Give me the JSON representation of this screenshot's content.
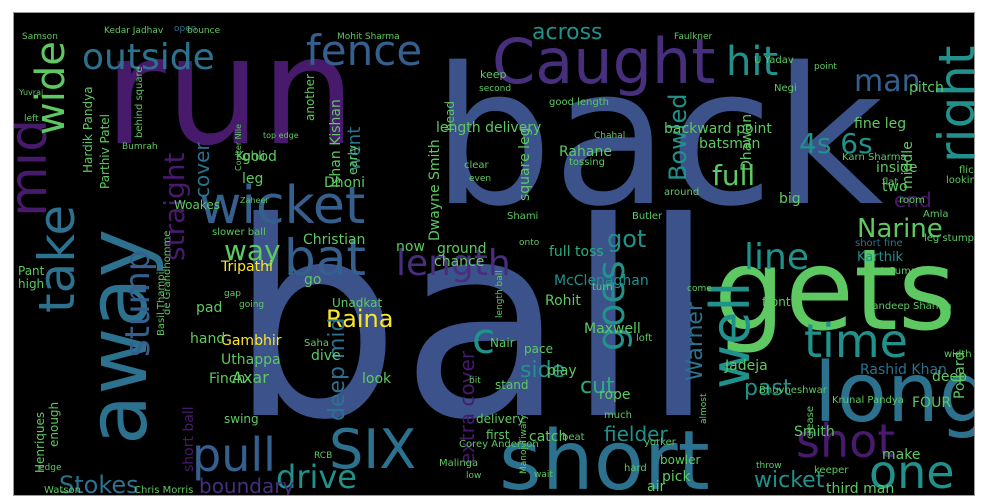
{
  "palette": {
    "purple": "#481a6c",
    "violet": "#472f7d",
    "indigo": "#414487",
    "blue": "#3b528b",
    "slate": "#355f8d",
    "steel": "#2c728e",
    "teal": "#21918c",
    "sea": "#28ae80",
    "green": "#5ec962",
    "lime": "#addc30",
    "yellow": "#fde725",
    "background": "#000000",
    "border": "#9a9a9a"
  },
  "words": [
    {
      "text": "ball"
    },
    {
      "text": "back"
    },
    {
      "text": "run"
    },
    {
      "text": "gets"
    },
    {
      "text": "away"
    },
    {
      "text": "short"
    },
    {
      "text": "long"
    },
    {
      "text": "Caught"
    },
    {
      "text": "wicket"
    },
    {
      "text": "mid"
    },
    {
      "text": "fence"
    },
    {
      "text": "outside"
    },
    {
      "text": "bat"
    },
    {
      "text": "right"
    },
    {
      "text": "take"
    },
    {
      "text": "well"
    },
    {
      "text": "SIX"
    },
    {
      "text": "pull"
    },
    {
      "text": "time"
    },
    {
      "text": "shot"
    },
    {
      "text": "one"
    },
    {
      "text": "wide"
    },
    {
      "text": "stump"
    },
    {
      "text": "hit"
    },
    {
      "text": "line"
    },
    {
      "text": "drive"
    },
    {
      "text": "full"
    },
    {
      "text": "goes"
    },
    {
      "text": "length"
    },
    {
      "text": "man"
    },
    {
      "text": "Narine"
    },
    {
      "text": "4s 6s"
    },
    {
      "text": "straight"
    },
    {
      "text": "way"
    },
    {
      "text": "Raina"
    },
    {
      "text": "Stokes"
    },
    {
      "text": "boundary"
    },
    {
      "text": "cover"
    },
    {
      "text": "across"
    },
    {
      "text": "Bowled"
    },
    {
      "text": "got"
    },
    {
      "text": "c"
    },
    {
      "text": "Warner"
    },
    {
      "text": "deep mid"
    },
    {
      "text": "extra cover"
    },
    {
      "text": "side"
    },
    {
      "text": "cut"
    },
    {
      "text": "past"
    },
    {
      "text": "fielder"
    },
    {
      "text": "wicket"
    },
    {
      "text": "went"
    },
    {
      "text": "end"
    },
    {
      "text": "Dhoni"
    },
    {
      "text": "Dwayne Smith"
    },
    {
      "text": "Christian"
    },
    {
      "text": "Tripathi"
    },
    {
      "text": "Gambhir"
    },
    {
      "text": "Uthappa"
    },
    {
      "text": "Axar"
    },
    {
      "text": "Rahane"
    },
    {
      "text": "Jadeja"
    },
    {
      "text": "Maxwell"
    },
    {
      "text": "Rohit"
    },
    {
      "text": "Rashid Khan"
    },
    {
      "text": "Kohli"
    },
    {
      "text": "Dhawan"
    },
    {
      "text": "Smith"
    },
    {
      "text": "Karthik"
    },
    {
      "text": "McClenaghan"
    },
    {
      "text": "full toss"
    },
    {
      "text": "ground"
    },
    {
      "text": "square leg"
    },
    {
      "text": "length delivery"
    },
    {
      "text": "backward point"
    },
    {
      "text": "batsman"
    },
    {
      "text": "fine leg"
    },
    {
      "text": "pitch"
    },
    {
      "text": "keep"
    },
    {
      "text": "second"
    },
    {
      "text": "Faulkner"
    },
    {
      "text": "Mohit Sharma"
    },
    {
      "text": "Kedar Jadhav"
    },
    {
      "text": "open"
    },
    {
      "text": "Samson"
    },
    {
      "text": "Yuvraj"
    },
    {
      "text": "Hardik Pandya"
    },
    {
      "text": "Parthiv Patel"
    },
    {
      "text": "Woakes"
    },
    {
      "text": "Pant"
    },
    {
      "text": "high"
    },
    {
      "text": "pad"
    },
    {
      "text": "hand"
    },
    {
      "text": "Finch"
    },
    {
      "text": "good"
    },
    {
      "text": "leg"
    },
    {
      "text": "another"
    },
    {
      "text": "Ishan Kishan"
    },
    {
      "text": "now"
    },
    {
      "text": "chance"
    },
    {
      "text": "go"
    },
    {
      "text": "Unadkat"
    },
    {
      "text": "Nair"
    },
    {
      "text": "pace"
    },
    {
      "text": "dive"
    },
    {
      "text": "look"
    },
    {
      "text": "stand"
    },
    {
      "text": "first"
    },
    {
      "text": "delivery"
    },
    {
      "text": "catch"
    },
    {
      "text": "play"
    },
    {
      "text": "rope"
    },
    {
      "text": "bowler"
    },
    {
      "text": "pick"
    },
    {
      "text": "air"
    },
    {
      "text": "third man"
    },
    {
      "text": "make"
    },
    {
      "text": "Krunal Pandya"
    },
    {
      "text": "FOUR"
    },
    {
      "text": "deep"
    },
    {
      "text": "Pollard"
    },
    {
      "text": "front"
    },
    {
      "text": "middle"
    },
    {
      "text": "inside"
    },
    {
      "text": "two"
    },
    {
      "text": "big"
    },
    {
      "text": "Karn Sharma"
    },
    {
      "text": "Henriques"
    },
    {
      "text": "enough"
    },
    {
      "text": "swing"
    },
    {
      "text": "short ball"
    },
    {
      "text": "Chris Morris"
    },
    {
      "text": "Watson"
    },
    {
      "text": "early"
    },
    {
      "text": "head"
    },
    {
      "text": "clear"
    },
    {
      "text": "Zaheer"
    },
    {
      "text": "slower ball"
    },
    {
      "text": "de Grandhomme"
    },
    {
      "text": "Corey Anderson"
    },
    {
      "text": "Bhuvneshwar"
    },
    {
      "text": "crease"
    },
    {
      "text": "Sandeep Sharma"
    },
    {
      "text": "Pat Cummins"
    },
    {
      "text": "short fine"
    },
    {
      "text": "U Yadav"
    },
    {
      "text": "Negi"
    },
    {
      "text": "Coulter Nile"
    },
    {
      "text": "Butler"
    },
    {
      "text": "Shami"
    },
    {
      "text": "around"
    },
    {
      "text": "turn"
    },
    {
      "text": "Saha"
    },
    {
      "text": "Basil Thampi"
    },
    {
      "text": "Malinga"
    },
    {
      "text": "hard"
    },
    {
      "text": "keeper"
    },
    {
      "text": "bounce"
    },
    {
      "text": "point"
    },
    {
      "text": "left"
    },
    {
      "text": "top edge"
    },
    {
      "text": "behind square"
    },
    {
      "text": "good length"
    },
    {
      "text": "tossing"
    },
    {
      "text": "flick"
    },
    {
      "text": "looking"
    },
    {
      "text": "flat"
    },
    {
      "text": "room"
    },
    {
      "text": "Amla"
    },
    {
      "text": "leg stump"
    },
    {
      "text": "width"
    },
    {
      "text": "loft"
    },
    {
      "text": "beat"
    },
    {
      "text": "yorker"
    },
    {
      "text": "much"
    },
    {
      "text": "edge"
    },
    {
      "text": "low"
    },
    {
      "text": "RCB"
    },
    {
      "text": "bit"
    },
    {
      "text": "even"
    },
    {
      "text": "Bumrah"
    },
    {
      "text": "gap"
    },
    {
      "text": "going"
    },
    {
      "text": "length ball"
    },
    {
      "text": "onto"
    },
    {
      "text": "Manoj Tiwary"
    },
    {
      "text": "throw"
    },
    {
      "text": "Chahal"
    },
    {
      "text": "come"
    },
    {
      "text": "wait"
    },
    {
      "text": "almost"
    }
  ]
}
